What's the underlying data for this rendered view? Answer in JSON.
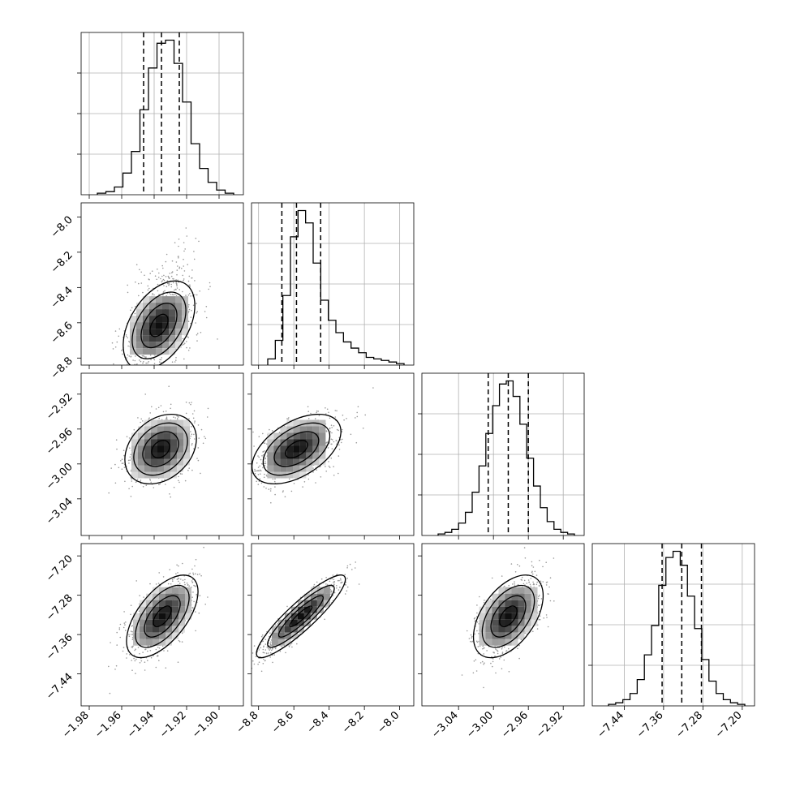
{
  "chart_data": {
    "type": "corner",
    "grid": true,
    "parameters": [
      {
        "id": "p1",
        "range": [
          -1.985,
          -1.885
        ],
        "ticks": [
          -1.98,
          -1.96,
          -1.94,
          -1.92,
          -1.9
        ],
        "tick_labels": [
          "−1.98",
          "−1.96",
          "−1.94",
          "−1.92",
          "−1.90"
        ],
        "quantiles": [
          -1.9465,
          -1.9355,
          -1.9245
        ],
        "hist_bins": [
          0.01,
          0.02,
          0.05,
          0.14,
          0.28,
          0.55,
          0.82,
          0.98,
          1.0,
          0.85,
          0.6,
          0.33,
          0.17,
          0.08,
          0.03,
          0.01
        ],
        "hist_ymax": 1.05
      },
      {
        "id": "p2",
        "range": [
          -8.84,
          -7.92
        ],
        "ticks": [
          -8.8,
          -8.6,
          -8.4,
          -8.2,
          -8.0
        ],
        "tick_labels": [
          "−8.8",
          "−8.6",
          "−8.4",
          "−8.2",
          "−8.0"
        ],
        "quantiles": [
          -8.668,
          -8.585,
          -8.448
        ],
        "hist_bins": [
          0.04,
          0.16,
          0.45,
          0.83,
          1.0,
          0.92,
          0.66,
          0.42,
          0.29,
          0.21,
          0.15,
          0.11,
          0.08,
          0.05,
          0.04,
          0.03,
          0.02,
          0.01
        ],
        "hist_ymax": 1.05
      },
      {
        "id": "p3",
        "range": [
          -3.082,
          -2.896
        ],
        "ticks": [
          -3.04,
          -3.0,
          -2.96,
          -2.92
        ],
        "tick_labels": [
          "−3.04",
          "−3.00",
          "−2.96",
          "−2.92"
        ],
        "quantiles": [
          -3.006,
          -2.983,
          -2.96
        ],
        "hist_bins": [
          0.01,
          0.02,
          0.04,
          0.08,
          0.15,
          0.28,
          0.45,
          0.66,
          0.84,
          0.98,
          1.0,
          0.9,
          0.72,
          0.5,
          0.32,
          0.18,
          0.09,
          0.04,
          0.02,
          0.01
        ],
        "hist_ymax": 1.05
      },
      {
        "id": "p4",
        "range": [
          -7.505,
          -7.175
        ],
        "ticks": [
          -7.44,
          -7.36,
          -7.28,
          -7.2
        ],
        "tick_labels": [
          "−7.44",
          "−7.36",
          "−7.28",
          "−7.20"
        ],
        "quantiles": [
          -7.363,
          -7.323,
          -7.283
        ],
        "hist_bins": [
          0.01,
          0.02,
          0.04,
          0.08,
          0.17,
          0.33,
          0.52,
          0.78,
          0.96,
          1.0,
          0.91,
          0.71,
          0.5,
          0.3,
          0.16,
          0.08,
          0.04,
          0.02,
          0.01
        ],
        "hist_ymax": 1.05
      }
    ],
    "pair_distributions": [
      {
        "row": 1,
        "col": 0,
        "mean": [
          -1.937,
          -8.615
        ],
        "sd": [
          0.0105,
          0.12
        ],
        "corr": 0.45,
        "skew_y": true
      },
      {
        "row": 2,
        "col": 0,
        "mean": [
          -1.936,
          -2.983
        ],
        "sd": [
          0.0105,
          0.019
        ],
        "corr": 0.3,
        "skew_y": false
      },
      {
        "row": 2,
        "col": 1,
        "mean": [
          -8.585,
          -2.983
        ],
        "sd": [
          0.12,
          0.019
        ],
        "corr": 0.5,
        "skew_y": false
      },
      {
        "row": 3,
        "col": 0,
        "mean": [
          -1.935,
          -7.323
        ],
        "sd": [
          0.0105,
          0.04
        ],
        "corr": 0.6,
        "skew_y": false
      },
      {
        "row": 3,
        "col": 1,
        "mean": [
          -8.56,
          -7.323
        ],
        "sd": [
          0.12,
          0.04
        ],
        "corr": 0.9,
        "skew_y": false
      },
      {
        "row": 3,
        "col": 2,
        "mean": [
          -2.983,
          -7.323
        ],
        "sd": [
          0.019,
          0.04
        ],
        "corr": 0.5,
        "skew_y": false
      }
    ],
    "contour_levels_sigma": [
      0.5,
      1.0,
      1.5,
      2.0
    ]
  },
  "colors": {
    "line": "#000000",
    "grid": "#b0b0b0",
    "points": "#9a9a9a",
    "density_max": "#000000",
    "background": "#ffffff"
  }
}
